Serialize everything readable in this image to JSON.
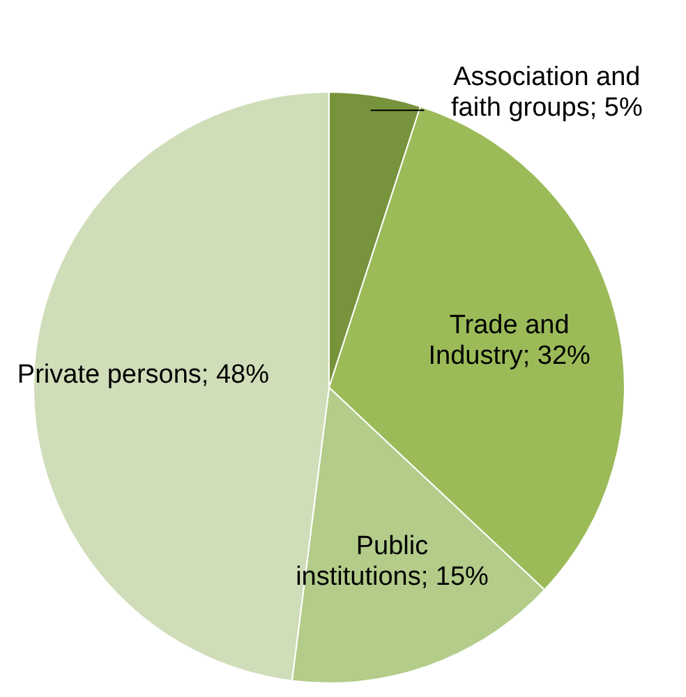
{
  "chart_data": {
    "type": "pie",
    "categories": [
      "Association and faith groups",
      "Trade and Industry",
      "Public institutions",
      "Private persons"
    ],
    "values": [
      5,
      32,
      15,
      48
    ],
    "value_labels": [
      "5%",
      "32%",
      "15%",
      "48%"
    ],
    "colors": [
      "#77933c",
      "#9bbb59",
      "#b3cc8a",
      "#d0ddb9"
    ]
  }
}
